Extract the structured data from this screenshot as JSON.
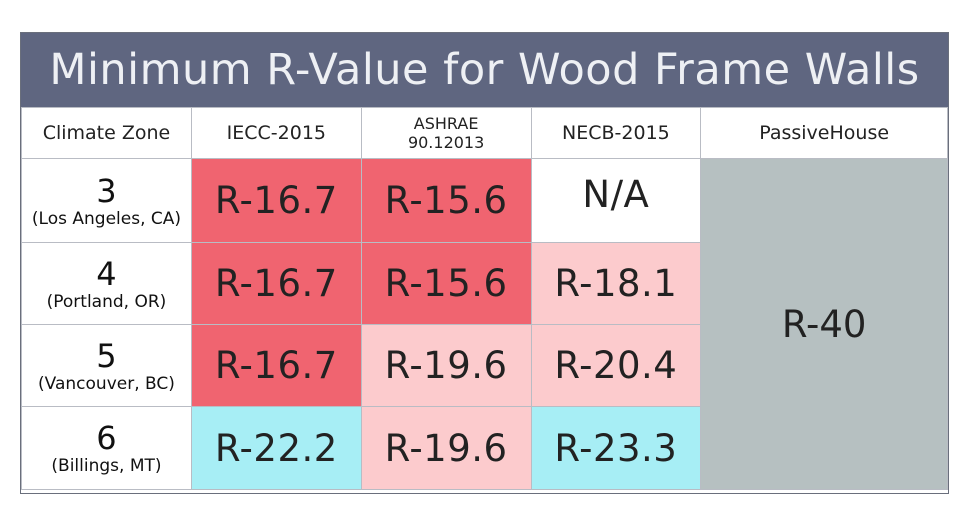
{
  "colors": {
    "title_bg": "#5f6680",
    "title_text": "#eef0f4",
    "red": "#f06470",
    "pink": "#fccbcd",
    "blue": "#a7eef5",
    "white": "#ffffff",
    "gray": "#b6c0c1"
  },
  "chart_data": {
    "type": "table",
    "title": "Minimum R-Value for Wood Frame Walls",
    "columns": [
      "Climate Zone",
      "IECC-2015",
      "ASHRAE 90.12013",
      "NECB-2015",
      "PassiveHouse"
    ],
    "header": {
      "climate_zone": "Climate Zone",
      "iecc": "IECC-2015",
      "ashrae_line1": "ASHRAE",
      "ashrae_line2": "90.12013",
      "necb": "NECB-2015",
      "passive": "PassiveHouse"
    },
    "rows": [
      {
        "zone": "3",
        "city": "(Los Angeles, CA)",
        "iecc": "R-16.7",
        "ashrae": "R-15.6",
        "necb": "N/A",
        "iecc_color": "red",
        "ashrae_color": "red",
        "necb_color": "white"
      },
      {
        "zone": "4",
        "city": "(Portland, OR)",
        "iecc": "R-16.7",
        "ashrae": "R-15.6",
        "necb": "R-18.1",
        "iecc_color": "red",
        "ashrae_color": "red",
        "necb_color": "pink"
      },
      {
        "zone": "5",
        "city": "(Vancouver, BC)",
        "iecc": "R-16.7",
        "ashrae": "R-19.6",
        "necb": "R-20.4",
        "iecc_color": "red",
        "ashrae_color": "pink",
        "necb_color": "pink"
      },
      {
        "zone": "6",
        "city": "(Billings, MT)",
        "iecc": "R-22.2",
        "ashrae": "R-19.6",
        "necb": "R-23.3",
        "iecc_color": "blue",
        "ashrae_color": "pink",
        "necb_color": "blue"
      }
    ],
    "passive_house_all_zones": "R-40",
    "passive_house_color": "gray"
  }
}
